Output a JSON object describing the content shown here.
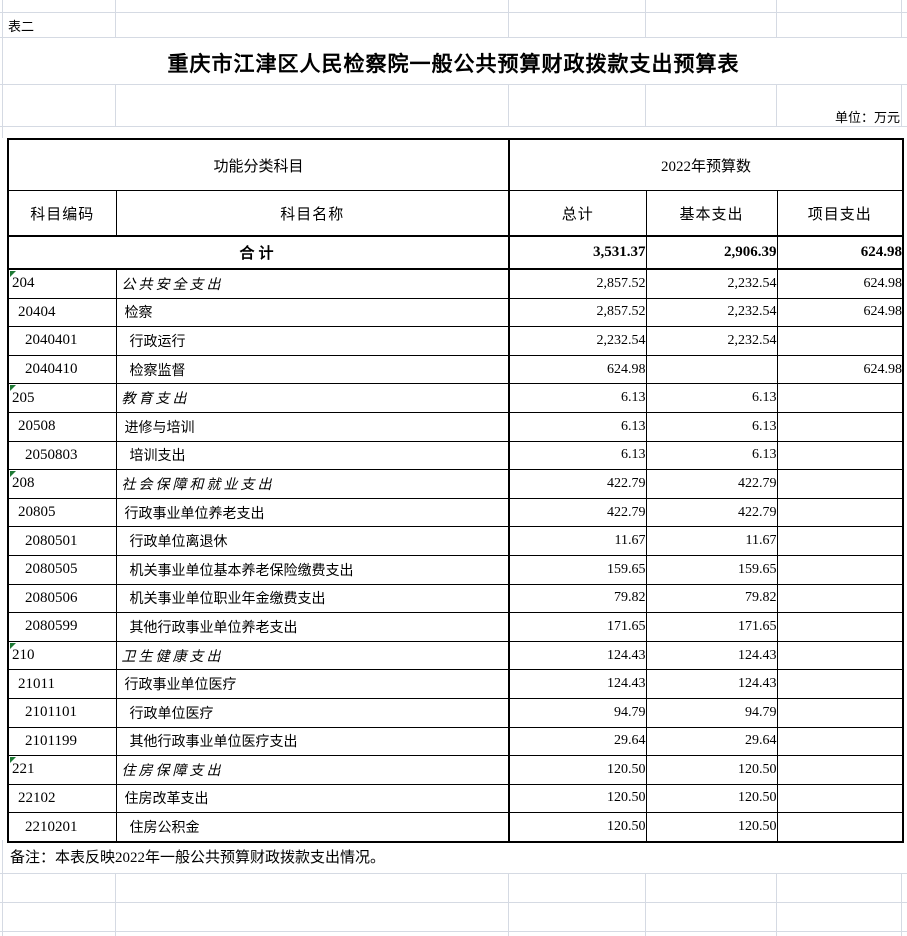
{
  "sheet": {
    "corner_label": "表二",
    "title": "重庆市江津区人民检察院一般公共预算财政拨款支出预算表",
    "unit_label": "单位：万元",
    "note": "备注：本表反映2022年一般公共预算财政拨款支出情况。"
  },
  "table": {
    "header": {
      "group_function": "功能分类科目",
      "group_budget": "2022年预算数",
      "col_code": "科目编码",
      "col_name": "科目名称",
      "col_total": "总计",
      "col_basic": "基本支出",
      "col_project": "项目支出"
    },
    "total_row": {
      "label": "合计",
      "total": "3,531.37",
      "basic": "2,906.39",
      "project": "624.98"
    },
    "rows": [
      {
        "code": "204",
        "name": "公共安全支出",
        "level": 1,
        "flag": true,
        "total": "2,857.52",
        "basic": "2,232.54",
        "project": "624.98"
      },
      {
        "code": "20404",
        "name": "检察",
        "level": 2,
        "flag": false,
        "total": "2,857.52",
        "basic": "2,232.54",
        "project": "624.98"
      },
      {
        "code": "2040401",
        "name": "行政运行",
        "level": 3,
        "flag": false,
        "total": "2,232.54",
        "basic": "2,232.54",
        "project": ""
      },
      {
        "code": "2040410",
        "name": "检察监督",
        "level": 3,
        "flag": false,
        "total": "624.98",
        "basic": "",
        "project": "624.98"
      },
      {
        "code": "205",
        "name": "教育支出",
        "level": 1,
        "flag": true,
        "total": "6.13",
        "basic": "6.13",
        "project": ""
      },
      {
        "code": "20508",
        "name": "进修与培训",
        "level": 2,
        "flag": false,
        "total": "6.13",
        "basic": "6.13",
        "project": ""
      },
      {
        "code": "2050803",
        "name": "培训支出",
        "level": 3,
        "flag": false,
        "total": "6.13",
        "basic": "6.13",
        "project": ""
      },
      {
        "code": "208",
        "name": "社会保障和就业支出",
        "level": 1,
        "flag": true,
        "total": "422.79",
        "basic": "422.79",
        "project": ""
      },
      {
        "code": "20805",
        "name": "行政事业单位养老支出",
        "level": 2,
        "flag": false,
        "total": "422.79",
        "basic": "422.79",
        "project": ""
      },
      {
        "code": "2080501",
        "name": "行政单位离退休",
        "level": 3,
        "flag": false,
        "total": "11.67",
        "basic": "11.67",
        "project": ""
      },
      {
        "code": "2080505",
        "name": "机关事业单位基本养老保险缴费支出",
        "level": 3,
        "flag": false,
        "total": "159.65",
        "basic": "159.65",
        "project": ""
      },
      {
        "code": "2080506",
        "name": "机关事业单位职业年金缴费支出",
        "level": 3,
        "flag": false,
        "total": "79.82",
        "basic": "79.82",
        "project": ""
      },
      {
        "code": "2080599",
        "name": "其他行政事业单位养老支出",
        "level": 3,
        "flag": false,
        "total": "171.65",
        "basic": "171.65",
        "project": ""
      },
      {
        "code": "210",
        "name": "卫生健康支出",
        "level": 1,
        "flag": true,
        "total": "124.43",
        "basic": "124.43",
        "project": ""
      },
      {
        "code": "21011",
        "name": "行政事业单位医疗",
        "level": 2,
        "flag": false,
        "total": "124.43",
        "basic": "124.43",
        "project": ""
      },
      {
        "code": "2101101",
        "name": "行政单位医疗",
        "level": 3,
        "flag": false,
        "total": "94.79",
        "basic": "94.79",
        "project": ""
      },
      {
        "code": "2101199",
        "name": "其他行政事业单位医疗支出",
        "level": 3,
        "flag": false,
        "total": "29.64",
        "basic": "29.64",
        "project": ""
      },
      {
        "code": "221",
        "name": "住房保障支出",
        "level": 1,
        "flag": true,
        "total": "120.50",
        "basic": "120.50",
        "project": ""
      },
      {
        "code": "22102",
        "name": "住房改革支出",
        "level": 2,
        "flag": false,
        "total": "120.50",
        "basic": "120.50",
        "project": ""
      },
      {
        "code": "2210201",
        "name": "住房公积金",
        "level": 3,
        "flag": false,
        "total": "120.50",
        "basic": "120.50",
        "project": ""
      }
    ]
  },
  "colors": {
    "gridline": "#d5dae3",
    "table_border": "#000000",
    "error_flag_green": "#1e7a34"
  }
}
